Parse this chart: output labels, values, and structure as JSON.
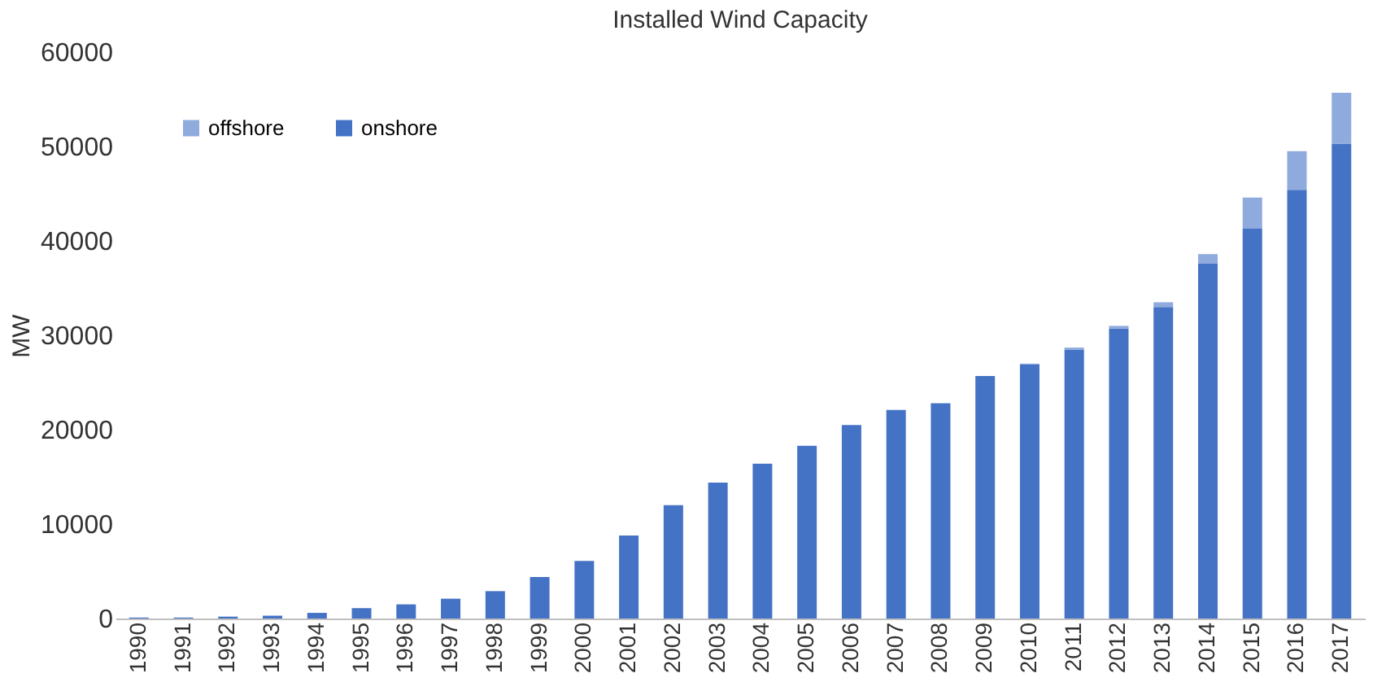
{
  "chart_data": {
    "type": "bar",
    "title": "Installed Wind Capacity",
    "ylabel": "MW",
    "categories": [
      "1990",
      "1991",
      "1992",
      "1993",
      "1994",
      "1995",
      "1996",
      "1997",
      "1998",
      "1999",
      "2000",
      "2001",
      "2002",
      "2003",
      "2004",
      "2005",
      "2006",
      "2007",
      "2008",
      "2009",
      "2010",
      "2011",
      "2012",
      "2013",
      "2014",
      "2015",
      "2016",
      "2017"
    ],
    "stacked": true,
    "series": [
      {
        "name": "onshore",
        "color": "#4472c4",
        "values": [
          100,
          100,
          200,
          300,
          600,
          1100,
          1500,
          2100,
          2900,
          4400,
          6100,
          8800,
          12000,
          14400,
          16400,
          18300,
          20500,
          22100,
          22800,
          25700,
          26900,
          28500,
          30700,
          33000,
          37600,
          41300,
          45400,
          50300
        ]
      },
      {
        "name": "offshore",
        "color": "#8faadc",
        "values": [
          0,
          0,
          0,
          0,
          0,
          0,
          0,
          0,
          0,
          0,
          0,
          0,
          0,
          0,
          0,
          0,
          0,
          0,
          0,
          0,
          100,
          200,
          300,
          500,
          1000,
          3300,
          4100,
          5400
        ]
      }
    ],
    "ylim": [
      0,
      60000
    ],
    "yticks": [
      0,
      10000,
      20000,
      30000,
      40000,
      50000,
      60000
    ],
    "grid": false,
    "legend": "top left"
  }
}
